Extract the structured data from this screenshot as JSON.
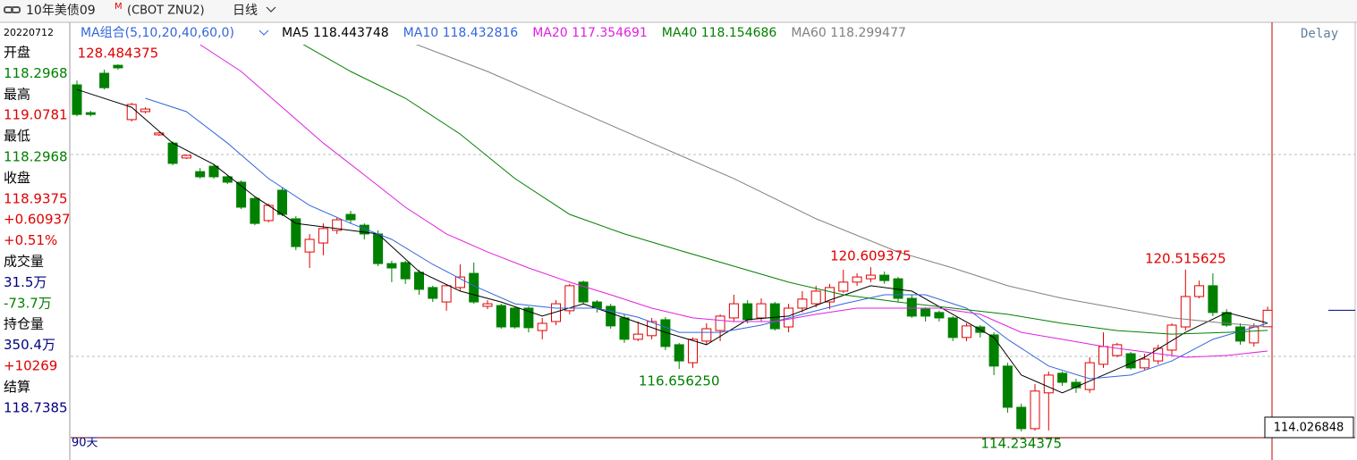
{
  "header": {
    "title": "10年美债09",
    "flag": "M",
    "code": "(CBOT ZNU2)",
    "period": "日线",
    "delay": "Delay",
    "range": "90天",
    "cursor_price": "114.026848"
  },
  "info": {
    "date": "20220712",
    "lines": [
      {
        "text": "开盘",
        "color": "#000000"
      },
      {
        "text": "118.2968",
        "color": "#008000"
      },
      {
        "text": "最高",
        "color": "#000000"
      },
      {
        "text": "119.0781",
        "color": "#e00000"
      },
      {
        "text": "最低",
        "color": "#000000"
      },
      {
        "text": "118.2968",
        "color": "#008000"
      },
      {
        "text": "收盘",
        "color": "#000000"
      },
      {
        "text": "118.9375",
        "color": "#e00000"
      },
      {
        "text": "+0.60937",
        "color": "#e00000"
      },
      {
        "text": "+0.51%",
        "color": "#e00000"
      },
      {
        "text": "成交量",
        "color": "#000000"
      },
      {
        "text": "31.5万",
        "color": "#000080"
      },
      {
        "text": "-73.7万",
        "color": "#008000"
      },
      {
        "text": "持仓量",
        "color": "#000000"
      },
      {
        "text": "350.4万",
        "color": "#000080"
      },
      {
        "text": "+10269",
        "color": "#e00000"
      },
      {
        "text": "结算",
        "color": "#000000"
      },
      {
        "text": "118.7385",
        "color": "#000080"
      }
    ]
  },
  "chart_data": {
    "type": "candlestick",
    "ma_label": "MA组合(5,10,20,40,60,0)",
    "up_color": "#e00000",
    "down_color": "#008000",
    "ylim": [
      113.99,
      129.32
    ],
    "open": [
      127.69,
      126.61,
      128.14,
      128.45,
      126.34,
      126.65,
      125.75,
      125.43,
      124.85,
      124.32,
      124.53,
      124.12,
      123.91,
      123.28,
      122.42,
      123.6,
      122.49,
      121.2,
      121.55,
      122.04,
      122.66,
      122.24,
      121.9,
      120.75,
      120.79,
      120.41,
      119.82,
      119.26,
      119.82,
      120.37,
      119.09,
      119.12,
      119.02,
      119.02,
      118.15,
      118.5,
      118.92,
      120.03,
      119.26,
      119.09,
      118.64,
      117.81,
      117.95,
      118.57,
      117.6,
      116.9,
      117.74,
      118.15,
      118.64,
      119.19,
      118.64,
      119.19,
      118.29,
      119.02,
      119.19,
      119.26,
      119.68,
      120.03,
      120.16,
      120.3,
      120.16,
      119.4,
      118.98,
      118.85,
      118.64,
      117.88,
      118.29,
      117.98,
      116.77,
      115.17,
      114.34,
      115.73,
      116.49,
      116.14,
      115.86,
      116.84,
      117.18,
      117.25,
      116.7,
      116.97,
      117.39,
      118.29,
      119.47,
      119.89,
      118.85,
      118.29,
      117.67,
      118.296875
    ],
    "high": [
      127.86,
      126.68,
      128.28,
      128.484375,
      126.99,
      126.82,
      125.85,
      125.5,
      124.98,
      124.46,
      124.6,
      124.19,
      123.98,
      123.35,
      123.08,
      123.7,
      122.59,
      121.9,
      122.31,
      122.56,
      122.8,
      122.31,
      122.04,
      120.86,
      120.86,
      120.51,
      119.89,
      119.96,
      120.72,
      120.79,
      119.33,
      119.19,
      119.09,
      119.09,
      118.64,
      119.33,
      119.96,
      120.09,
      119.33,
      119.19,
      118.78,
      118.5,
      118.64,
      118.67,
      117.67,
      117.88,
      118.43,
      118.78,
      119.54,
      119.33,
      119.4,
      119.26,
      119.19,
      119.68,
      119.89,
      119.96,
      120.51,
      120.37,
      120.609375,
      120.44,
      120.23,
      119.54,
      119.05,
      118.92,
      118.71,
      118.43,
      118.36,
      118.08,
      116.9,
      115.31,
      116.07,
      116.56,
      116.56,
      116.28,
      117.11,
      118.08,
      117.67,
      117.32,
      117.25,
      117.6,
      118.43,
      120.515625,
      120.09,
      120.37,
      118.98,
      118.43,
      118.43,
      119.078125
    ],
    "low": [
      126.47,
      126.47,
      127.51,
      128.28,
      126.27,
      126.58,
      125.71,
      124.57,
      124.81,
      124.05,
      124.05,
      123.84,
      122.87,
      122.24,
      122.35,
      122.59,
      121.27,
      120.58,
      121.07,
      121.9,
      122.31,
      121.69,
      120.65,
      120.03,
      119.96,
      119.54,
      119.26,
      118.92,
      119.68,
      119.19,
      118.98,
      118.22,
      118.22,
      118.08,
      117.81,
      118.36,
      118.78,
      119.19,
      118.85,
      118.22,
      117.67,
      117.74,
      117.81,
      117.39,
      116.65625,
      116.7,
      117.6,
      117.74,
      118.5,
      118.43,
      118.5,
      118.15,
      118.08,
      118.85,
      119.05,
      118.98,
      119.61,
      119.89,
      120.03,
      119.96,
      119.26,
      118.64,
      118.5,
      118.5,
      117.74,
      117.74,
      117.88,
      116.42,
      114.96,
      114.234375,
      114.26,
      114.27,
      116.0,
      115.73,
      115.73,
      116.7,
      117.11,
      116.63,
      116.63,
      116.84,
      117.18,
      118.15,
      119.4,
      118.71,
      118.29,
      117.6,
      117.53,
      118.296875
    ],
    "close": [
      126.54,
      126.54,
      127.58,
      128.35,
      126.93,
      126.75,
      125.82,
      124.64,
      124.95,
      124.12,
      124.12,
      123.91,
      122.94,
      122.31,
      123.01,
      122.66,
      121.41,
      121.69,
      122.11,
      122.45,
      122.45,
      121.9,
      120.75,
      120.58,
      120.16,
      119.75,
      119.4,
      119.89,
      120.23,
      119.26,
      119.19,
      118.29,
      118.29,
      118.26,
      118.43,
      119.19,
      119.89,
      119.26,
      119.02,
      118.33,
      117.81,
      118.01,
      118.5,
      117.53,
      116.97,
      117.81,
      118.22,
      118.71,
      119.19,
      118.57,
      119.19,
      118.22,
      119.02,
      119.37,
      119.68,
      119.82,
      120.03,
      120.23,
      120.3,
      120.09,
      119.4,
      118.71,
      118.71,
      118.64,
      117.88,
      118.33,
      118.08,
      116.77,
      115.17,
      114.34,
      115.8,
      116.42,
      116.14,
      115.93,
      116.9,
      117.53,
      117.6,
      116.7,
      117.04,
      117.46,
      118.36,
      119.47,
      119.89,
      118.85,
      118.36,
      117.74,
      118.29,
      118.9375
    ],
    "annotations": [
      {
        "x": 3,
        "value": 128.484375,
        "label": "128.484375"
      },
      {
        "x": 44,
        "value": 116.65625,
        "label": "116.656250"
      },
      {
        "x": 58,
        "value": 120.609375,
        "label": "120.609375"
      },
      {
        "x": 69,
        "value": 114.234375,
        "label": "114.234375"
      },
      {
        "x": 81,
        "value": 120.515625,
        "label": "120.515625"
      }
    ],
    "series": [
      {
        "name": "MA5",
        "color": "#000000",
        "x": [
          0,
          4,
          7,
          10,
          13,
          16,
          19,
          22,
          25,
          28,
          31,
          34,
          37,
          40,
          43,
          46,
          49,
          52,
          55,
          58,
          61,
          64,
          67,
          69,
          72,
          75,
          78,
          81,
          84,
          87
        ],
        "values": [
          127.51,
          126.82,
          125.43,
          124.6,
          123.35,
          122.31,
          122.11,
          121.9,
          120.44,
          119.68,
          119.26,
          118.71,
          119.19,
          118.64,
          118.08,
          117.6,
          118.57,
          118.71,
          119.33,
          119.89,
          119.68,
          118.78,
          117.88,
          116.42,
          115.73,
          116.42,
          117.11,
          118.08,
          118.85,
          118.443748
        ]
      },
      {
        "name": "MA10",
        "color": "#3366dd",
        "x": [
          5,
          8,
          11,
          14,
          17,
          20,
          23,
          26,
          29,
          32,
          35,
          38,
          41,
          44,
          47,
          50,
          53,
          56,
          59,
          62,
          65,
          68,
          71,
          74,
          77,
          80,
          83,
          87
        ],
        "values": [
          127.17,
          126.65,
          125.43,
          124.05,
          123.01,
          122.31,
          121.69,
          120.72,
          119.89,
          119.19,
          119.02,
          119.02,
          118.67,
          118.08,
          118.08,
          118.36,
          118.78,
          119.19,
          119.54,
          119.54,
          119.02,
          117.81,
          116.77,
          116.28,
          116.42,
          116.97,
          117.81,
          118.432816
        ]
      },
      {
        "name": "MA20",
        "color": "#e020e0",
        "x": [
          9,
          12,
          15,
          18,
          21,
          24,
          27,
          30,
          33,
          36,
          39,
          42,
          45,
          48,
          51,
          54,
          57,
          60,
          63,
          66,
          69,
          72,
          75,
          78,
          81,
          84,
          87
        ],
        "values": [
          129.25,
          128.21,
          126.82,
          125.43,
          124.19,
          122.94,
          121.9,
          121.2,
          120.58,
          120.03,
          119.54,
          119.02,
          118.64,
          118.5,
          118.5,
          118.78,
          119.02,
          119.02,
          119.02,
          118.78,
          118.08,
          117.81,
          117.53,
          117.32,
          117.11,
          117.18,
          117.354691
        ]
      },
      {
        "name": "MA40",
        "color": "#008000",
        "x": [
          16,
          20,
          24,
          28,
          32,
          36,
          40,
          44,
          48,
          52,
          56,
          60,
          64,
          68,
          72,
          76,
          80,
          84,
          87
        ],
        "values": [
          129.42,
          128.21,
          127.17,
          125.78,
          124.05,
          122.66,
          121.9,
          121.27,
          120.65,
          120.03,
          119.54,
          119.26,
          119.02,
          118.78,
          118.43,
          118.15,
          118.01,
          118.08,
          118.154686
        ]
      },
      {
        "name": "MA60",
        "color": "#808080",
        "x": [
          24,
          30,
          36,
          42,
          48,
          54,
          60,
          64,
          68,
          72,
          76,
          80,
          84,
          87
        ],
        "values": [
          129.42,
          128.21,
          126.82,
          125.43,
          124.05,
          122.49,
          121.2,
          120.58,
          119.89,
          119.4,
          119.02,
          118.64,
          118.43,
          118.299477
        ]
      }
    ]
  }
}
